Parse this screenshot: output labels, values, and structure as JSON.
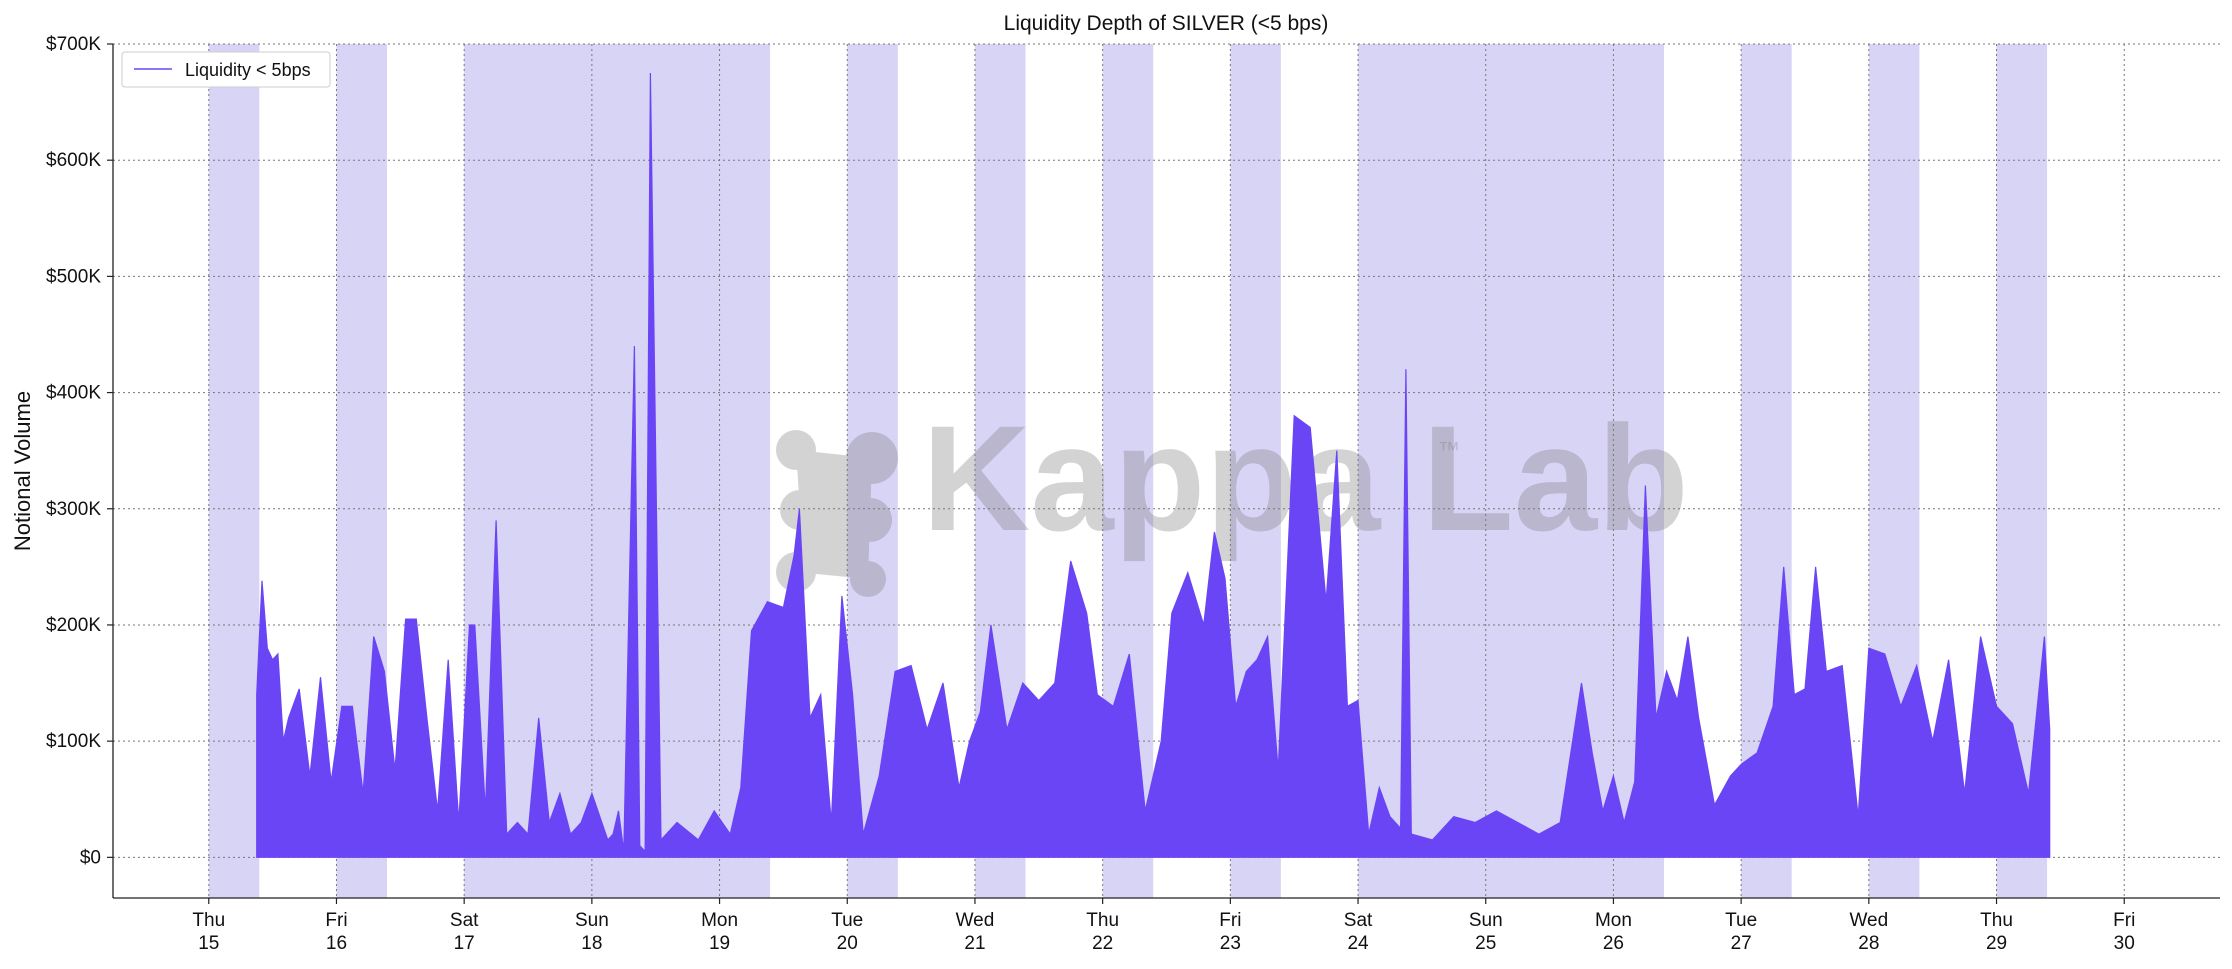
{
  "chart_data": {
    "type": "area",
    "title": "Liquidity Depth of SILVER (<5 bps)",
    "ylabel": "Notional Volume",
    "xlabel": "",
    "ylim": [
      -35000,
      700000
    ],
    "xlim": [
      "2022-09-14T06:00",
      "2022-09-30T18:00"
    ],
    "yticks": [
      0,
      100000,
      200000,
      300000,
      400000,
      500000,
      600000,
      700000
    ],
    "ytick_labels": [
      "$0",
      "$100K",
      "$200K",
      "$300K",
      "$400K",
      "$500K",
      "$600K",
      "$700K"
    ],
    "xticks": [
      {
        "date": "2022-09-15",
        "day": "Thu",
        "num": "15"
      },
      {
        "date": "2022-09-16",
        "day": "Fri",
        "num": "16"
      },
      {
        "date": "2022-09-17",
        "day": "Sat",
        "num": "17"
      },
      {
        "date": "2022-09-18",
        "day": "Sun",
        "num": "18"
      },
      {
        "date": "2022-09-19",
        "day": "Mon",
        "num": "19"
      },
      {
        "date": "2022-09-20",
        "day": "Tue",
        "num": "20"
      },
      {
        "date": "2022-09-21",
        "day": "Wed",
        "num": "21"
      },
      {
        "date": "2022-09-22",
        "day": "Thu",
        "num": "22"
      },
      {
        "date": "2022-09-23",
        "day": "Fri",
        "num": "23"
      },
      {
        "date": "2022-09-24",
        "day": "Sat",
        "num": "24"
      },
      {
        "date": "2022-09-25",
        "day": "Sun",
        "num": "25"
      },
      {
        "date": "2022-09-26",
        "day": "Mon",
        "num": "26"
      },
      {
        "date": "2022-09-27",
        "day": "Tue",
        "num": "27"
      },
      {
        "date": "2022-09-28",
        "day": "Wed",
        "num": "28"
      },
      {
        "date": "2022-09-29",
        "day": "Thu",
        "num": "29"
      },
      {
        "date": "2022-09-30",
        "day": "Fri",
        "num": "30"
      }
    ],
    "grid": true,
    "legend_placement": "top-left",
    "series": [
      {
        "name": "Liquidity < 5bps",
        "color": "#6a45f5",
        "x": [
          "2022-09-15T09:00",
          "2022-09-15T10:00",
          "2022-09-15T11:00",
          "2022-09-15T12:00",
          "2022-09-15T13:00",
          "2022-09-15T14:00",
          "2022-09-15T15:00",
          "2022-09-15T17:00",
          "2022-09-15T19:00",
          "2022-09-15T21:00",
          "2022-09-15T23:00",
          "2022-09-16T01:00",
          "2022-09-16T03:00",
          "2022-09-16T05:00",
          "2022-09-16T07:00",
          "2022-09-16T09:00",
          "2022-09-16T11:00",
          "2022-09-16T13:00",
          "2022-09-16T15:00",
          "2022-09-16T17:00",
          "2022-09-16T19:00",
          "2022-09-16T21:00",
          "2022-09-16T23:00",
          "2022-09-17T01:00",
          "2022-09-17T02:00",
          "2022-09-17T04:00",
          "2022-09-17T06:00",
          "2022-09-17T08:00",
          "2022-09-17T10:00",
          "2022-09-17T12:00",
          "2022-09-17T14:00",
          "2022-09-17T16:00",
          "2022-09-17T18:00",
          "2022-09-17T20:00",
          "2022-09-17T22:00",
          "2022-09-18T00:00",
          "2022-09-18T03:00",
          "2022-09-18T04:00",
          "2022-09-18T05:00",
          "2022-09-18T06:00",
          "2022-09-18T08:00",
          "2022-09-18T09:00",
          "2022-09-18T10:00",
          "2022-09-18T11:00",
          "2022-09-18T13:00",
          "2022-09-18T16:00",
          "2022-09-18T20:00",
          "2022-09-18T23:00",
          "2022-09-19T02:00",
          "2022-09-19T04:00",
          "2022-09-19T06:00",
          "2022-09-19T09:00",
          "2022-09-19T12:00",
          "2022-09-19T14:00",
          "2022-09-19T15:00",
          "2022-09-19T17:00",
          "2022-09-19T19:00",
          "2022-09-19T21:00",
          "2022-09-19T23:00",
          "2022-09-20T01:00",
          "2022-09-20T03:00",
          "2022-09-20T06:00",
          "2022-09-20T09:00",
          "2022-09-20T12:00",
          "2022-09-20T15:00",
          "2022-09-20T18:00",
          "2022-09-20T21:00",
          "2022-09-20T23:00",
          "2022-09-21T01:00",
          "2022-09-21T03:00",
          "2022-09-21T06:00",
          "2022-09-21T09:00",
          "2022-09-21T12:00",
          "2022-09-21T15:00",
          "2022-09-21T18:00",
          "2022-09-21T21:00",
          "2022-09-21T23:00",
          "2022-09-22T02:00",
          "2022-09-22T05:00",
          "2022-09-22T08:00",
          "2022-09-22T11:00",
          "2022-09-22T13:00",
          "2022-09-22T16:00",
          "2022-09-22T19:00",
          "2022-09-22T21:00",
          "2022-09-22T23:00",
          "2022-09-23T01:00",
          "2022-09-23T03:00",
          "2022-09-23T05:00",
          "2022-09-23T07:00",
          "2022-09-23T09:00",
          "2022-09-23T12:00",
          "2022-09-23T15:00",
          "2022-09-23T18:00",
          "2022-09-23T20:00",
          "2022-09-23T22:00",
          "2022-09-24T00:00",
          "2022-09-24T02:00",
          "2022-09-24T04:00",
          "2022-09-24T06:00",
          "2022-09-24T08:00",
          "2022-09-24T09:00",
          "2022-09-24T10:00",
          "2022-09-24T14:00",
          "2022-09-24T18:00",
          "2022-09-24T22:00",
          "2022-09-25T02:00",
          "2022-09-25T06:00",
          "2022-09-25T10:00",
          "2022-09-25T14:00",
          "2022-09-25T18:00",
          "2022-09-25T20:00",
          "2022-09-25T22:00",
          "2022-09-26T00:00",
          "2022-09-26T02:00",
          "2022-09-26T04:00",
          "2022-09-26T06:00",
          "2022-09-26T08:00",
          "2022-09-26T10:00",
          "2022-09-26T12:00",
          "2022-09-26T14:00",
          "2022-09-26T16:00",
          "2022-09-26T19:00",
          "2022-09-26T22:00",
          "2022-09-27T00:00",
          "2022-09-27T03:00",
          "2022-09-27T06:00",
          "2022-09-27T08:00",
          "2022-09-27T10:00",
          "2022-09-27T12:00",
          "2022-09-27T14:00",
          "2022-09-27T16:00",
          "2022-09-27T19:00",
          "2022-09-27T22:00",
          "2022-09-28T00:00",
          "2022-09-28T03:00",
          "2022-09-28T06:00",
          "2022-09-28T09:00",
          "2022-09-28T12:00",
          "2022-09-28T15:00",
          "2022-09-28T18:00",
          "2022-09-28T21:00",
          "2022-09-29T00:00",
          "2022-09-29T03:00",
          "2022-09-29T06:00",
          "2022-09-29T09:00",
          "2022-09-29T10:00"
        ],
        "values": [
          140000,
          238000,
          180000,
          170000,
          175000,
          100000,
          120000,
          145000,
          70000,
          155000,
          65000,
          130000,
          130000,
          55000,
          190000,
          160000,
          75000,
          205000,
          205000,
          120000,
          40000,
          170000,
          30000,
          200000,
          200000,
          40000,
          290000,
          20000,
          30000,
          20000,
          120000,
          30000,
          55000,
          20000,
          30000,
          55000,
          15000,
          20000,
          40000,
          5000,
          440000,
          10000,
          5000,
          675000,
          15000,
          30000,
          15000,
          40000,
          20000,
          60000,
          195000,
          220000,
          215000,
          260000,
          300000,
          120000,
          140000,
          30000,
          225000,
          140000,
          20000,
          70000,
          160000,
          165000,
          110000,
          150000,
          60000,
          100000,
          125000,
          200000,
          110000,
          150000,
          135000,
          150000,
          255000,
          210000,
          140000,
          130000,
          175000,
          40000,
          100000,
          210000,
          245000,
          200000,
          280000,
          240000,
          130000,
          160000,
          170000,
          190000,
          75000,
          380000,
          370000,
          220000,
          350000,
          130000,
          135000,
          20000,
          60000,
          35000,
          25000,
          420000,
          20000,
          15000,
          35000,
          30000,
          40000,
          30000,
          20000,
          30000,
          150000,
          90000,
          40000,
          70000,
          30000,
          65000,
          320000,
          120000,
          160000,
          135000,
          190000,
          120000,
          45000,
          70000,
          80000,
          90000,
          130000,
          250000,
          140000,
          145000,
          250000,
          160000,
          165000,
          35000,
          180000,
          175000,
          130000,
          165000,
          100000,
          170000,
          55000,
          190000,
          130000,
          115000,
          55000,
          190000,
          110000
        ]
      }
    ],
    "shaded_regions": [
      [
        "2022-09-15T00:00",
        "2022-09-15T09:30"
      ],
      [
        "2022-09-16T00:00",
        "2022-09-16T09:30"
      ],
      [
        "2022-09-17T00:00",
        "2022-09-19T09:30"
      ],
      [
        "2022-09-20T00:00",
        "2022-09-20T09:30"
      ],
      [
        "2022-09-21T00:00",
        "2022-09-21T09:30"
      ],
      [
        "2022-09-22T00:00",
        "2022-09-22T09:30"
      ],
      [
        "2022-09-23T00:00",
        "2022-09-23T09:30"
      ],
      [
        "2022-09-24T00:00",
        "2022-09-26T09:30"
      ],
      [
        "2022-09-27T00:00",
        "2022-09-27T09:30"
      ],
      [
        "2022-09-28T00:00",
        "2022-09-28T09:30"
      ],
      [
        "2022-09-29T00:00",
        "2022-09-29T09:30"
      ]
    ],
    "shade_color": "#d8d4f6",
    "watermark": "Kappa Lab",
    "watermark_tm": "™"
  }
}
